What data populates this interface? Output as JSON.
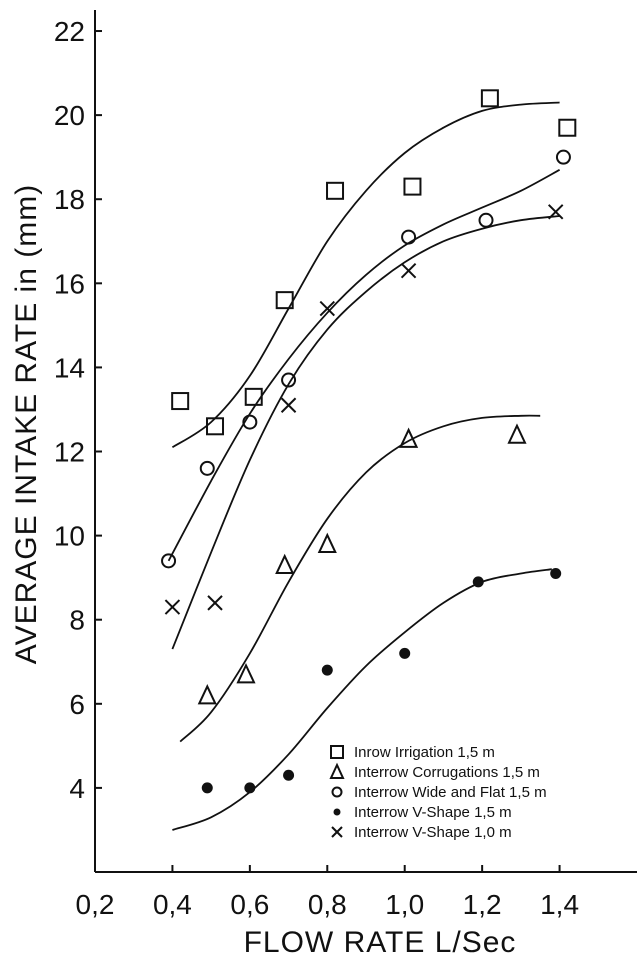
{
  "chart_data": {
    "type": "scatter",
    "xlabel": "FLOW RATE L/Sec",
    "ylabel": "AVERAGE INTAKE RATE in (mm)",
    "xlim": [
      0.2,
      1.6
    ],
    "ylim": [
      2.0,
      22.5
    ],
    "x_ticks": [
      0.2,
      0.4,
      0.6,
      0.8,
      1.0,
      1.2,
      1.4
    ],
    "x_tick_labels": [
      "0,2",
      "0,4",
      "0,6",
      "0,8",
      "1,0",
      "1,2",
      "1,4"
    ],
    "y_ticks": [
      4,
      6,
      8,
      10,
      12,
      14,
      16,
      18,
      20,
      22
    ],
    "y_tick_labels": [
      "4",
      "6",
      "8",
      "10",
      "12",
      "14",
      "16",
      "18",
      "20",
      "22"
    ],
    "grid": false,
    "legend_position": "bottom-right",
    "series": [
      {
        "name": "Inrow Irrigation 1,5 m",
        "marker": "square",
        "points": [
          [
            0.42,
            13.2
          ],
          [
            0.51,
            12.6
          ],
          [
            0.61,
            13.3
          ],
          [
            0.69,
            15.6
          ],
          [
            0.82,
            18.2
          ],
          [
            1.02,
            18.3
          ],
          [
            1.22,
            20.4
          ],
          [
            1.42,
            19.7
          ]
        ],
        "curve": [
          [
            0.4,
            12.1
          ],
          [
            0.5,
            12.7
          ],
          [
            0.6,
            13.8
          ],
          [
            0.7,
            15.4
          ],
          [
            0.8,
            17.0
          ],
          [
            0.9,
            18.2
          ],
          [
            1.0,
            19.1
          ],
          [
            1.1,
            19.7
          ],
          [
            1.2,
            20.1
          ],
          [
            1.3,
            20.25
          ],
          [
            1.4,
            20.3
          ]
        ]
      },
      {
        "name": "Interrow Corrugations 1,5 m",
        "marker": "triangle",
        "points": [
          [
            0.49,
            6.2
          ],
          [
            0.59,
            6.7
          ],
          [
            0.69,
            9.3
          ],
          [
            0.8,
            9.8
          ],
          [
            1.01,
            12.3
          ],
          [
            1.29,
            12.4
          ]
        ],
        "curve": [
          [
            0.42,
            5.1
          ],
          [
            0.5,
            5.8
          ],
          [
            0.6,
            7.2
          ],
          [
            0.7,
            8.9
          ],
          [
            0.8,
            10.4
          ],
          [
            0.9,
            11.5
          ],
          [
            1.0,
            12.2
          ],
          [
            1.1,
            12.6
          ],
          [
            1.2,
            12.8
          ],
          [
            1.3,
            12.85
          ],
          [
            1.35,
            12.85
          ]
        ]
      },
      {
        "name": "Interrow Wide and Flat 1,5 m",
        "marker": "circle",
        "points": [
          [
            0.39,
            9.4
          ],
          [
            0.49,
            11.6
          ],
          [
            0.6,
            12.7
          ],
          [
            0.7,
            13.7
          ],
          [
            1.01,
            17.1
          ],
          [
            1.21,
            17.5
          ],
          [
            1.41,
            19.0
          ]
        ],
        "curve": [
          [
            0.39,
            9.4
          ],
          [
            0.5,
            11.3
          ],
          [
            0.6,
            12.9
          ],
          [
            0.7,
            14.2
          ],
          [
            0.8,
            15.3
          ],
          [
            0.9,
            16.2
          ],
          [
            1.0,
            16.9
          ],
          [
            1.1,
            17.4
          ],
          [
            1.2,
            17.8
          ],
          [
            1.3,
            18.2
          ],
          [
            1.4,
            18.7
          ]
        ]
      },
      {
        "name": "Interrow V-Shape 1,5 m",
        "marker": "dot",
        "points": [
          [
            0.49,
            4.0
          ],
          [
            0.6,
            4.0
          ],
          [
            0.7,
            4.3
          ],
          [
            0.8,
            6.8
          ],
          [
            1.0,
            7.2
          ],
          [
            1.19,
            8.9
          ],
          [
            1.39,
            9.1
          ]
        ],
        "curve": [
          [
            0.4,
            3.0
          ],
          [
            0.5,
            3.3
          ],
          [
            0.6,
            3.9
          ],
          [
            0.7,
            4.8
          ],
          [
            0.8,
            5.9
          ],
          [
            0.9,
            6.9
          ],
          [
            1.0,
            7.7
          ],
          [
            1.1,
            8.4
          ],
          [
            1.2,
            8.9
          ],
          [
            1.3,
            9.1
          ],
          [
            1.38,
            9.2
          ]
        ]
      },
      {
        "name": "Interrow V-Shape 1,0 m",
        "marker": "x",
        "points": [
          [
            0.4,
            8.3
          ],
          [
            0.51,
            8.4
          ],
          [
            0.7,
            13.1
          ],
          [
            0.8,
            15.4
          ],
          [
            1.01,
            16.3
          ],
          [
            1.39,
            17.7
          ]
        ],
        "curve": [
          [
            0.4,
            7.3
          ],
          [
            0.5,
            9.6
          ],
          [
            0.6,
            11.8
          ],
          [
            0.7,
            13.6
          ],
          [
            0.8,
            14.9
          ],
          [
            0.9,
            15.8
          ],
          [
            1.0,
            16.5
          ],
          [
            1.1,
            17.0
          ],
          [
            1.2,
            17.3
          ],
          [
            1.3,
            17.5
          ],
          [
            1.4,
            17.6
          ]
        ]
      }
    ]
  }
}
